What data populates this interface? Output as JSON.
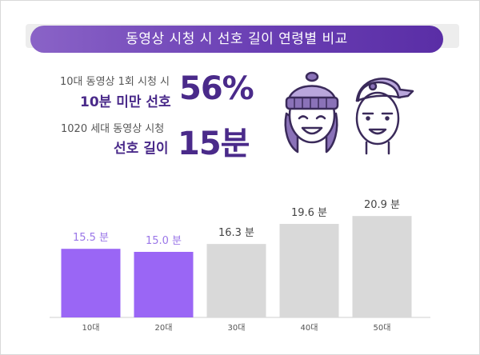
{
  "title": "동영상 시청 시 선호 길이 연령별 비교",
  "stats": {
    "stat1_line1": "10대 동영상 1회 시청 시",
    "stat1_line2": "10분 미만 선호",
    "stat1_value": "56%",
    "stat2_line1": "1020 세대 동영상 시청",
    "stat2_line2": "선호 길이",
    "stat2_value": "15분"
  },
  "colors": {
    "highlight": "#9a66f5",
    "highlight_label": "#9a76e8",
    "normal": "#d9d9d9",
    "normal_label": "#444444",
    "accent": "#4a2a8a"
  },
  "chart_data": {
    "type": "bar",
    "categories": [
      "10대",
      "20대",
      "30대",
      "40대",
      "50대"
    ],
    "values": [
      15.5,
      15.0,
      16.3,
      19.6,
      20.9
    ],
    "value_labels": [
      "15.5 분",
      "15.0 분",
      "16.3 분",
      "19.6 분",
      "20.9 분"
    ],
    "highlighted": [
      true,
      true,
      false,
      false,
      false
    ],
    "title": "",
    "xlabel": "",
    "ylabel": "",
    "ylim": [
      0,
      22
    ],
    "grid": false
  }
}
